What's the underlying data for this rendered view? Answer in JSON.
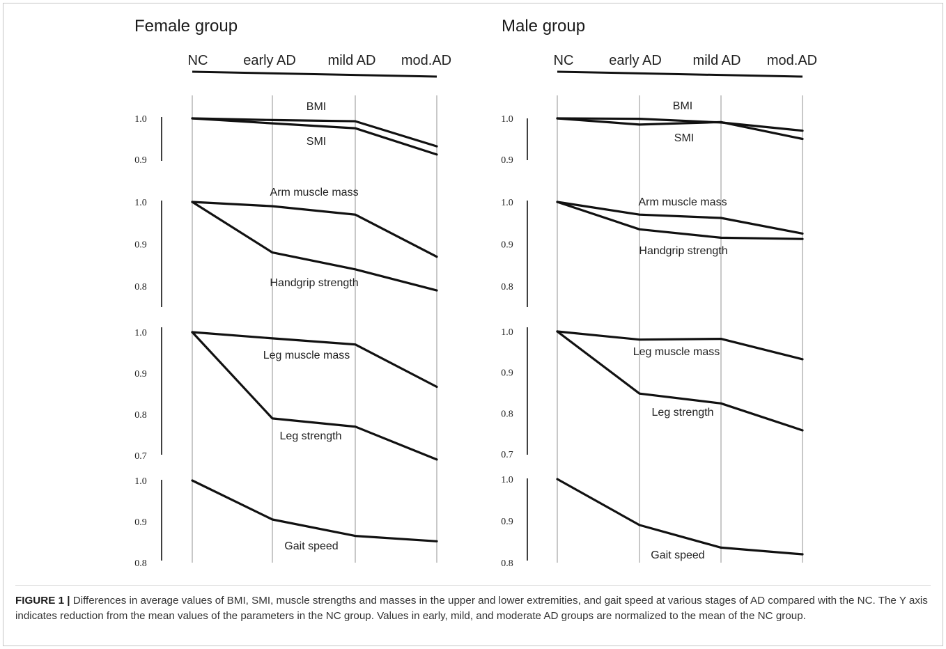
{
  "chart_data": [
    {
      "type": "line",
      "title": "Female group",
      "categories": [
        "NC",
        "early AD",
        "mild AD",
        "mod.AD"
      ],
      "grid": true,
      "panels": [
        {
          "ticks": [
            1.0,
            0.9
          ],
          "tick_labels": [
            "1.0",
            "0.9"
          ],
          "ylim": [
            0.9,
            1.0
          ],
          "series": [
            {
              "name": "BMI",
              "values": [
                1.0,
                0.996,
                0.993,
                0.932
              ]
            },
            {
              "name": "SMI",
              "values": [
                1.0,
                0.988,
                0.976,
                0.912
              ]
            }
          ]
        },
        {
          "ticks": [
            1.0,
            0.9,
            0.8
          ],
          "tick_labels": [
            "1.0",
            "0.9",
            "0.8"
          ],
          "ylim": [
            0.8,
            1.0
          ],
          "series": [
            {
              "name": "Arm muscle mass",
              "values": [
                1.0,
                0.99,
                0.97,
                0.87
              ]
            },
            {
              "name": "Handgrip strength",
              "values": [
                1.0,
                0.88,
                0.84,
                0.79
              ]
            }
          ]
        },
        {
          "ticks": [
            1.0,
            0.9,
            0.8,
            0.7
          ],
          "tick_labels": [
            "1.0",
            "0.9",
            "0.8",
            "0.7"
          ],
          "ylim": [
            0.7,
            1.0
          ],
          "series": [
            {
              "name": "Leg muscle mass",
              "values": [
                1.0,
                0.985,
                0.97,
                0.867
              ]
            },
            {
              "name": "Leg strength",
              "values": [
                1.0,
                0.79,
                0.77,
                0.69
              ]
            }
          ]
        },
        {
          "ticks": [
            1.0,
            0.9,
            0.8
          ],
          "tick_labels": [
            "1.0",
            "0.9",
            "0.8"
          ],
          "ylim": [
            0.8,
            1.0
          ],
          "series": [
            {
              "name": "Gait speed",
              "values": [
                1.0,
                0.905,
                0.865,
                0.852
              ]
            }
          ]
        }
      ]
    },
    {
      "type": "line",
      "title": "Male group",
      "categories": [
        "NC",
        "early AD",
        "mild AD",
        "mod.AD"
      ],
      "grid": true,
      "panels": [
        {
          "ticks": [
            1.0,
            0.9
          ],
          "tick_labels": [
            "1.0",
            "0.9"
          ],
          "ylim": [
            0.9,
            1.0
          ],
          "series": [
            {
              "name": "BMI",
              "values": [
                1.0,
                0.999,
                0.99,
                0.97
              ]
            },
            {
              "name": "SMI",
              "values": [
                1.0,
                0.985,
                0.991,
                0.95
              ]
            }
          ]
        },
        {
          "ticks": [
            1.0,
            0.9,
            0.8
          ],
          "tick_labels": [
            "1.0",
            "0.9",
            "0.8"
          ],
          "ylim": [
            0.8,
            1.0
          ],
          "series": [
            {
              "name": "Arm muscle mass",
              "values": [
                1.0,
                0.97,
                0.962,
                0.925
              ]
            },
            {
              "name": "Handgrip strength",
              "values": [
                1.0,
                0.935,
                0.915,
                0.912
              ]
            }
          ]
        },
        {
          "ticks": [
            1.0,
            0.9,
            0.8,
            0.7
          ],
          "tick_labels": [
            "1.0",
            "0.9",
            "0.8",
            "0.7"
          ],
          "ylim": [
            0.7,
            1.0
          ],
          "series": [
            {
              "name": "Leg muscle mass",
              "values": [
                1.0,
                0.98,
                0.982,
                0.932
              ]
            },
            {
              "name": "Leg strength",
              "values": [
                1.0,
                0.848,
                0.824,
                0.758
              ]
            }
          ]
        },
        {
          "ticks": [
            1.0,
            0.9,
            0.8
          ],
          "tick_labels": [
            "1.0",
            "0.9",
            "0.8"
          ],
          "ylim": [
            0.8,
            1.0
          ],
          "series": [
            {
              "name": "Gait speed",
              "values": [
                1.0,
                0.89,
                0.836,
                0.82
              ]
            }
          ]
        }
      ]
    }
  ],
  "caption": {
    "label": "FIGURE 1 |",
    "text": "Differences in average values of BMI, SMI, muscle strengths and masses in the upper and lower extremities, and gait speed at various stages of AD compared with the NC. The Y axis indicates reduction from the mean values of the parameters in the NC group. Values in early, mild, and moderate AD groups are normalized to the mean of the NC group."
  },
  "colors": {
    "line": "#111111",
    "grid": "#c8c8c8",
    "text": "#222222"
  }
}
